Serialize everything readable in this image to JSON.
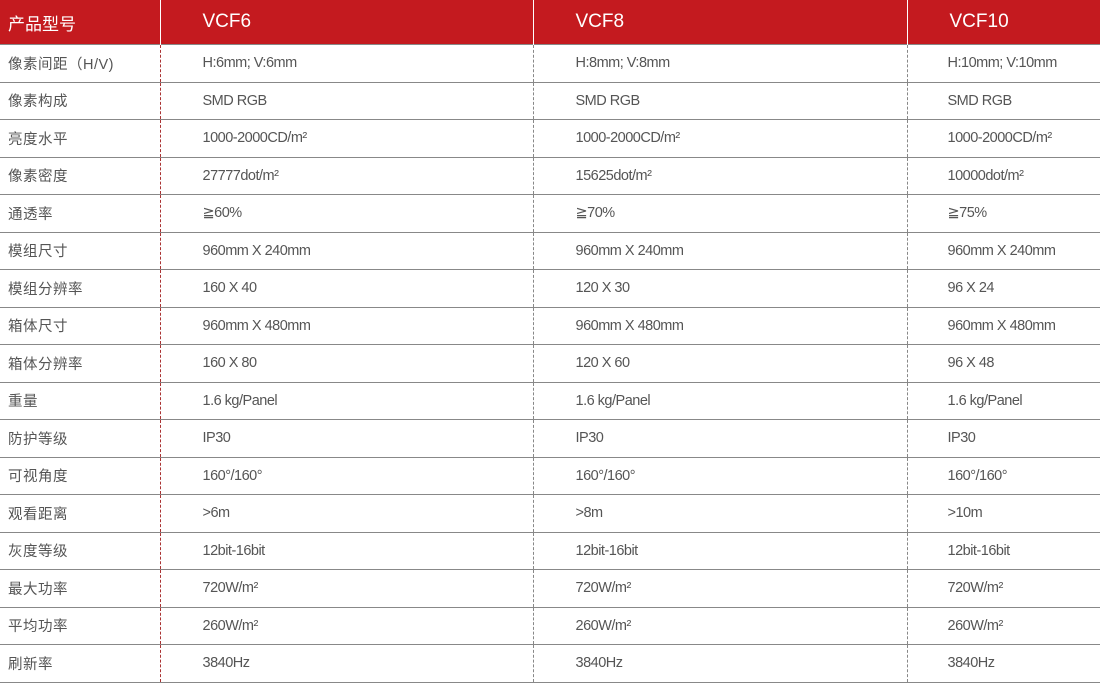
{
  "header": {
    "label": "产品型号",
    "models": [
      "VCF6",
      "VCF8",
      "VCF10"
    ]
  },
  "colors": {
    "header_bg": "#c41a1f"
  },
  "rows": [
    {
      "label": "像素间距（H/V)",
      "values": [
        "H:6mm;  V:6mm",
        "H:8mm;  V:8mm",
        "H:10mm;  V:10mm"
      ]
    },
    {
      "label": "像素构成",
      "values": [
        "SMD RGB",
        "SMD RGB",
        "SMD RGB"
      ]
    },
    {
      "label": "亮度水平",
      "values": [
        "1000-2000CD/m²",
        "1000-2000CD/m²",
        "1000-2000CD/m²"
      ]
    },
    {
      "label": "像素密度",
      "values": [
        "27777dot/m²",
        "15625dot/m²",
        "10000dot/m²"
      ]
    },
    {
      "label": "通透率",
      "values": [
        "≧60%",
        "≧70%",
        "≧75%"
      ]
    },
    {
      "label": "模组尺寸",
      "values": [
        "960mm X 240mm",
        "960mm X 240mm",
        "960mm X 240mm"
      ]
    },
    {
      "label": "模组分辨率",
      "values": [
        "160 X 40",
        "120 X 30",
        "96 X 24"
      ]
    },
    {
      "label": "箱体尺寸",
      "values": [
        "960mm X 480mm",
        "960mm X 480mm",
        "960mm X 480mm"
      ]
    },
    {
      "label": "箱体分辨率",
      "values": [
        "160 X 80",
        "120 X 60",
        "96 X 48"
      ]
    },
    {
      "label": "重量",
      "values": [
        "1.6 kg/Panel",
        "1.6 kg/Panel",
        "1.6 kg/Panel"
      ]
    },
    {
      "label": "防护等级",
      "values": [
        "IP30",
        "IP30",
        "IP30"
      ]
    },
    {
      "label": "可视角度",
      "values": [
        "160°/160°",
        "160°/160°",
        "160°/160°"
      ]
    },
    {
      "label": "观看距离",
      "values": [
        ">6m",
        ">8m",
        ">10m"
      ]
    },
    {
      "label": "灰度等级",
      "values": [
        "12bit-16bit",
        "12bit-16bit",
        "12bit-16bit"
      ]
    },
    {
      "label": "最大功率",
      "values": [
        "720W/m²",
        "720W/m²",
        "720W/m²"
      ]
    },
    {
      "label": "平均功率",
      "values": [
        "260W/m²",
        "260W/m²",
        "260W/m²"
      ]
    },
    {
      "label": "刷新率",
      "values": [
        "3840Hz",
        "3840Hz",
        "3840Hz"
      ]
    }
  ]
}
